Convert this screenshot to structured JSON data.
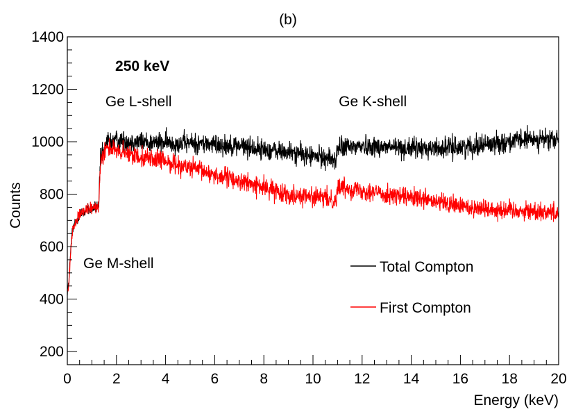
{
  "chart_data": {
    "type": "line",
    "title": "(b)",
    "xlabel": "Energy (keV)",
    "ylabel": "Counts",
    "xlim": [
      0,
      20
    ],
    "ylim": [
      150,
      1400
    ],
    "x_ticks": [
      0,
      2,
      4,
      6,
      8,
      10,
      12,
      14,
      16,
      18,
      20
    ],
    "x_tick_labels": [
      "0",
      "2",
      "4",
      "6",
      "8",
      "10",
      "12",
      "14",
      "16",
      "18",
      "20"
    ],
    "y_ticks": [
      200,
      400,
      600,
      800,
      1000,
      1200,
      1400
    ],
    "y_tick_labels": [
      "200",
      "400",
      "600",
      "800",
      "1000",
      "1200",
      "1400"
    ],
    "grid": false,
    "legend_position": "bottom-right",
    "annotations": [
      {
        "text": "250 keV",
        "bold": true,
        "x": 1.95,
        "y": 1270
      },
      {
        "text": "Ge L-shell",
        "bold": false,
        "x": 1.55,
        "y": 1135
      },
      {
        "text": "Ge K-shell",
        "bold": false,
        "x": 11.05,
        "y": 1135
      },
      {
        "text": "Ge M-shell",
        "bold": false,
        "x": 0.65,
        "y": 518
      }
    ],
    "series": [
      {
        "name": "Total Compton",
        "color": "#000000",
        "noise": 28,
        "x": [
          0.0,
          0.05,
          0.1,
          0.15,
          0.2,
          0.3,
          0.5,
          0.8,
          1.0,
          1.2,
          1.28,
          1.35,
          1.5,
          1.6,
          2.0,
          3.0,
          4.0,
          5.0,
          6.0,
          7.0,
          8.0,
          9.0,
          10.0,
          10.8,
          10.95,
          11.0,
          12.0,
          13.0,
          14.0,
          15.0,
          16.0,
          17.0,
          18.0,
          19.0,
          20.0
        ],
        "y": [
          430,
          450,
          520,
          600,
          650,
          690,
          720,
          740,
          745,
          750,
          760,
          930,
          960,
          1000,
          1005,
          1000,
          995,
          995,
          990,
          985,
          970,
          960,
          945,
          935,
          930,
          975,
          985,
          980,
          975,
          975,
          980,
          990,
          1000,
          1010,
          1005
        ]
      },
      {
        "name": "First Compton",
        "color": "#ff0000",
        "noise": 26,
        "x": [
          0.0,
          0.05,
          0.1,
          0.15,
          0.2,
          0.3,
          0.5,
          0.8,
          1.0,
          1.2,
          1.28,
          1.35,
          1.5,
          1.6,
          2.0,
          3.0,
          4.0,
          5.0,
          6.0,
          7.0,
          8.0,
          9.0,
          10.0,
          10.8,
          10.95,
          11.0,
          12.0,
          13.0,
          14.0,
          15.0,
          16.0,
          17.0,
          18.0,
          19.0,
          20.0
        ],
        "y": [
          430,
          450,
          520,
          600,
          650,
          690,
          720,
          740,
          745,
          750,
          760,
          930,
          960,
          985,
          960,
          945,
          925,
          900,
          875,
          850,
          825,
          800,
          790,
          780,
          775,
          830,
          815,
          800,
          785,
          770,
          755,
          745,
          740,
          735,
          730
        ]
      }
    ]
  }
}
